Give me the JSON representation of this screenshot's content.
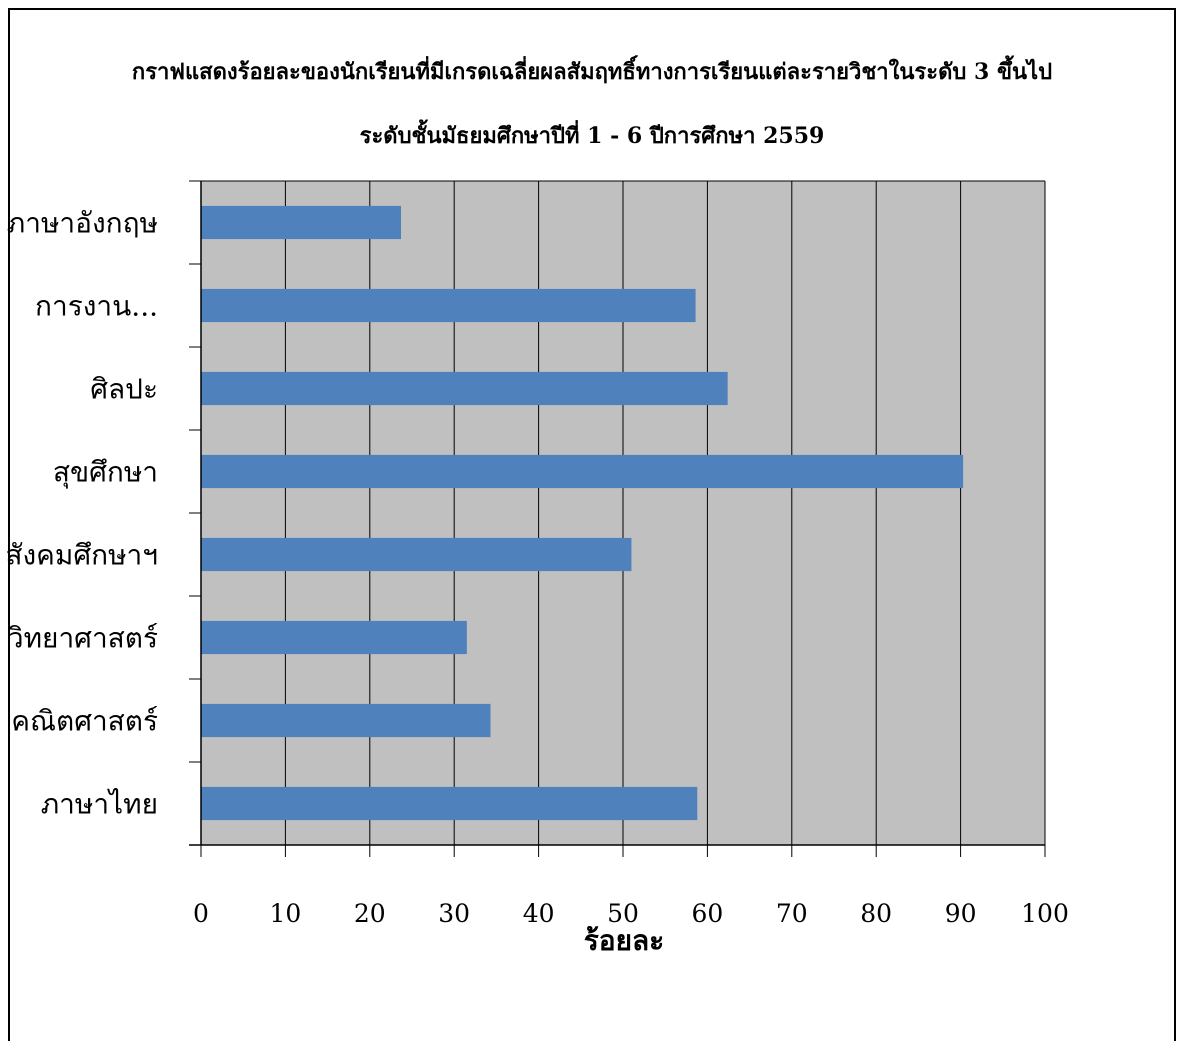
{
  "chart_data": {
    "type": "bar",
    "orientation": "horizontal",
    "title": "กราฟแสดงร้อยละของนักเรียนที่มีเกรดเฉลี่ยผลสัมฤทธิ์ทางการเรียนแต่ละรายวิชาในระดับ 3 ขึ้นไป",
    "subtitle": "ระดับชั้นมัธยมศึกษาปีที่ 1 - 6 ปีการศึกษา 2559",
    "xlabel": "ร้อยละ",
    "ylabel": "",
    "categories": [
      "ภาษาไทย",
      "คณิตศาสตร์",
      "วิทยาศาสตร์",
      "สังคมศึกษาฯ",
      "สุขศึกษา",
      "ศิลปะ",
      "การงาน...",
      "ภาษาอังกฤษ"
    ],
    "values": [
      58.8,
      34.3,
      31.5,
      51.0,
      90.3,
      62.4,
      58.6,
      23.7
    ],
    "xlim": [
      0,
      100
    ],
    "xticks": [
      "0",
      "10",
      "20",
      "30",
      "40",
      "50",
      "60",
      "70",
      "80",
      "90",
      "100"
    ],
    "grid": true,
    "legend": "none",
    "colors": {
      "bar": "#4f81bd",
      "plot_background": "#c0c0c0",
      "gridline": "#000000"
    }
  }
}
